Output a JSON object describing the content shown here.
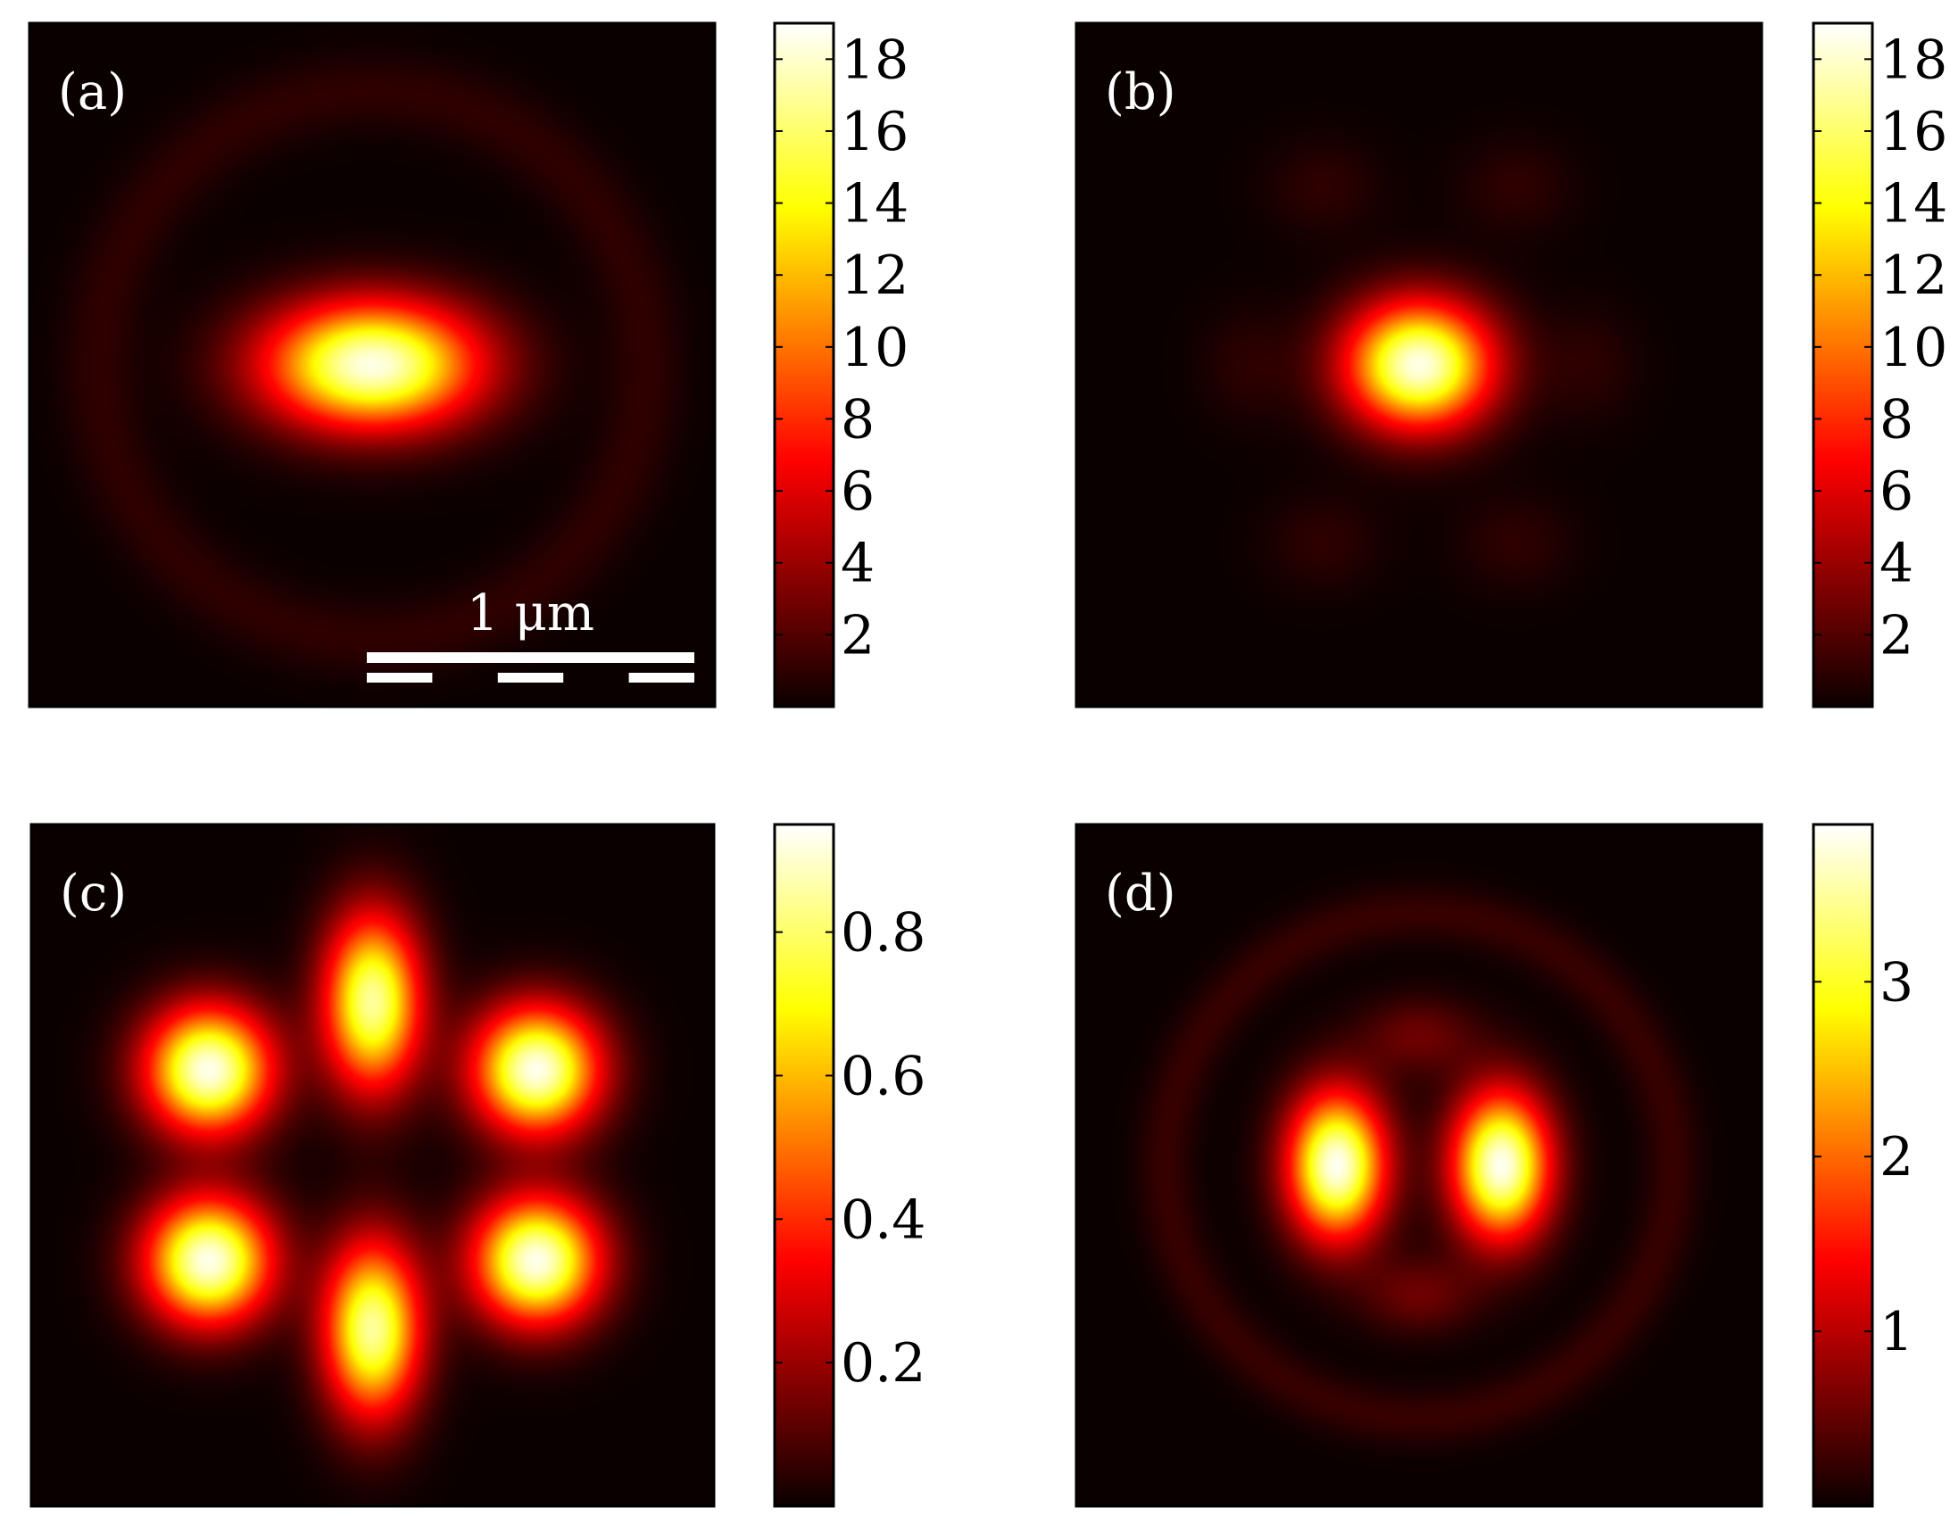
{
  "chart_data": [
    {
      "type": "heatmap",
      "panel_label": "(a)",
      "scale_bar": {
        "label": "1 μm"
      },
      "colormap": "hot",
      "colorbar": {
        "range": [
          0,
          19
        ],
        "ticks": [
          2,
          4,
          6,
          8,
          10,
          12,
          14,
          16,
          18
        ],
        "tick_labels": [
          "2",
          "4",
          "6",
          "8",
          "10",
          "12",
          "14",
          "16",
          "18"
        ]
      },
      "spots": [
        {
          "x": 0.5,
          "y": 0.5,
          "sx": 0.11,
          "sy": 0.065,
          "peak": 18.5
        },
        {
          "x": 0.5,
          "y": 0.5,
          "ring_radius": 0.4,
          "width": 0.04,
          "peak": 1.0
        }
      ]
    },
    {
      "type": "heatmap",
      "panel_label": "(b)",
      "colormap": "hot",
      "colorbar": {
        "range": [
          0,
          19
        ],
        "ticks": [
          2,
          4,
          6,
          8,
          10,
          12,
          14,
          16,
          18
        ],
        "tick_labels": [
          "2",
          "4",
          "6",
          "8",
          "10",
          "12",
          "14",
          "16",
          "18"
        ]
      },
      "spots": [
        {
          "x": 0.5,
          "y": 0.5,
          "sx": 0.075,
          "sy": 0.065,
          "peak": 18.5
        },
        {
          "x": 0.36,
          "y": 0.24,
          "sx": 0.06,
          "sy": 0.05,
          "peak": 1.0
        },
        {
          "x": 0.64,
          "y": 0.24,
          "sx": 0.06,
          "sy": 0.05,
          "peak": 1.0
        },
        {
          "x": 0.36,
          "y": 0.76,
          "sx": 0.06,
          "sy": 0.05,
          "peak": 1.0
        },
        {
          "x": 0.64,
          "y": 0.76,
          "sx": 0.06,
          "sy": 0.05,
          "peak": 1.0
        },
        {
          "x": 0.25,
          "y": 0.5,
          "sx": 0.05,
          "sy": 0.06,
          "peak": 0.9
        },
        {
          "x": 0.75,
          "y": 0.5,
          "sx": 0.05,
          "sy": 0.06,
          "peak": 0.9
        }
      ]
    },
    {
      "type": "heatmap",
      "panel_label": "(c)",
      "colormap": "hot",
      "colorbar": {
        "range": [
          0,
          0.95
        ],
        "ticks": [
          0.2,
          0.4,
          0.6,
          0.8
        ],
        "tick_labels": [
          "0.2",
          "0.4",
          "0.6",
          "0.8"
        ]
      },
      "spots": [
        {
          "x": 0.26,
          "y": 0.36,
          "sx": 0.065,
          "sy": 0.065,
          "peak": 0.93
        },
        {
          "x": 0.74,
          "y": 0.36,
          "sx": 0.065,
          "sy": 0.065,
          "peak": 0.93
        },
        {
          "x": 0.26,
          "y": 0.64,
          "sx": 0.065,
          "sy": 0.065,
          "peak": 0.93
        },
        {
          "x": 0.74,
          "y": 0.64,
          "sx": 0.065,
          "sy": 0.065,
          "peak": 0.93
        },
        {
          "x": 0.5,
          "y": 0.26,
          "sx": 0.05,
          "sy": 0.09,
          "peak": 0.85
        },
        {
          "x": 0.5,
          "y": 0.74,
          "sx": 0.05,
          "sy": 0.09,
          "peak": 0.85
        }
      ]
    },
    {
      "type": "heatmap",
      "panel_label": "(d)",
      "colormap": "hot",
      "colorbar": {
        "range": [
          0,
          3.9
        ],
        "ticks": [
          1,
          2,
          3
        ],
        "tick_labels": [
          "1",
          "2",
          "3"
        ]
      },
      "spots": [
        {
          "x": 0.38,
          "y": 0.5,
          "sx": 0.05,
          "sy": 0.075,
          "peak": 3.85
        },
        {
          "x": 0.62,
          "y": 0.5,
          "sx": 0.05,
          "sy": 0.075,
          "peak": 3.85
        },
        {
          "x": 0.5,
          "y": 0.31,
          "sx": 0.06,
          "sy": 0.04,
          "peak": 0.55
        },
        {
          "x": 0.5,
          "y": 0.69,
          "sx": 0.06,
          "sy": 0.04,
          "peak": 0.55
        },
        {
          "x": 0.5,
          "y": 0.5,
          "ring_radius": 0.37,
          "width": 0.03,
          "peak": 0.25
        }
      ]
    }
  ]
}
